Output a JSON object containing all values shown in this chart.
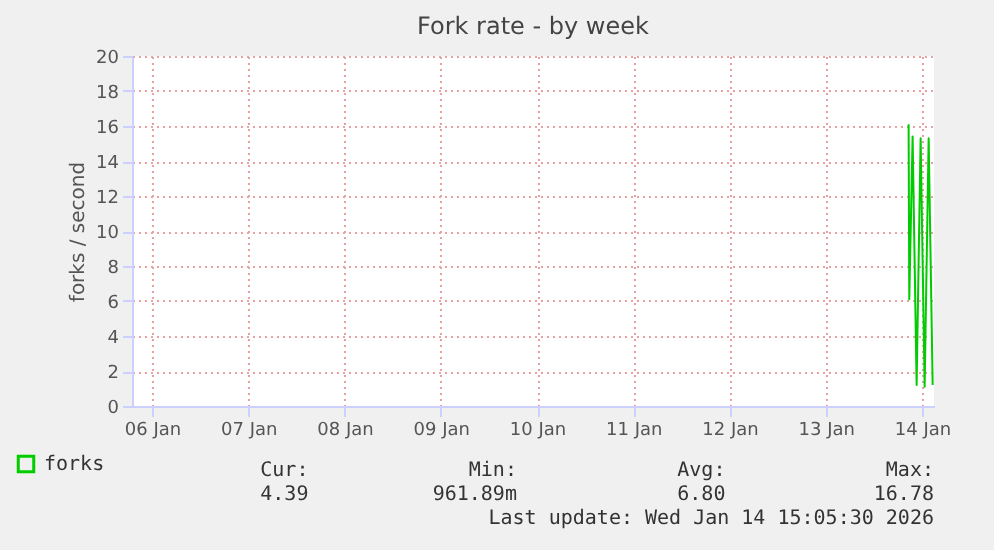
{
  "chart_data": {
    "type": "line",
    "title": "Fork rate - by week",
    "ylabel": "forks / second",
    "xlim": [
      "2026-01-05T19:00",
      "2026-01-14T03:00"
    ],
    "xticks": [
      {
        "value": "2026-01-06",
        "label": "06 Jan"
      },
      {
        "value": "2026-01-07",
        "label": "07 Jan"
      },
      {
        "value": "2026-01-08",
        "label": "08 Jan"
      },
      {
        "value": "2026-01-09",
        "label": "09 Jan"
      },
      {
        "value": "2026-01-10",
        "label": "10 Jan"
      },
      {
        "value": "2026-01-11",
        "label": "11 Jan"
      },
      {
        "value": "2026-01-12",
        "label": "12 Jan"
      },
      {
        "value": "2026-01-13",
        "label": "13 Jan"
      },
      {
        "value": "2026-01-14",
        "label": "14 Jan"
      }
    ],
    "ylim": [
      0,
      20
    ],
    "yticks": [
      0,
      2,
      4,
      6,
      8,
      10,
      12,
      14,
      16,
      18,
      20
    ],
    "x": [
      "2026-01-13T20:40",
      "2026-01-13T20:50",
      "2026-01-13T21:40",
      "2026-01-13T22:40",
      "2026-01-13T23:40",
      "2026-01-14T00:40",
      "2026-01-14T01:40",
      "2026-01-14T02:40"
    ],
    "series": [
      {
        "name": "forks",
        "color": "#00cc00",
        "values": [
          16.1,
          6.1,
          15.4,
          1.2,
          15.3,
          1.1,
          15.3,
          1.2
        ]
      }
    ],
    "grid": true,
    "legend": "bottom left",
    "marker": "none",
    "line_style": "solid",
    "annotations": [
      "Cur:",
      "4.39",
      "Min:",
      "961.89m",
      "Avg:",
      "6.80",
      "Max:",
      "16.78",
      "Last update: Wed Jan 14 15:05:30 2026"
    ]
  }
}
